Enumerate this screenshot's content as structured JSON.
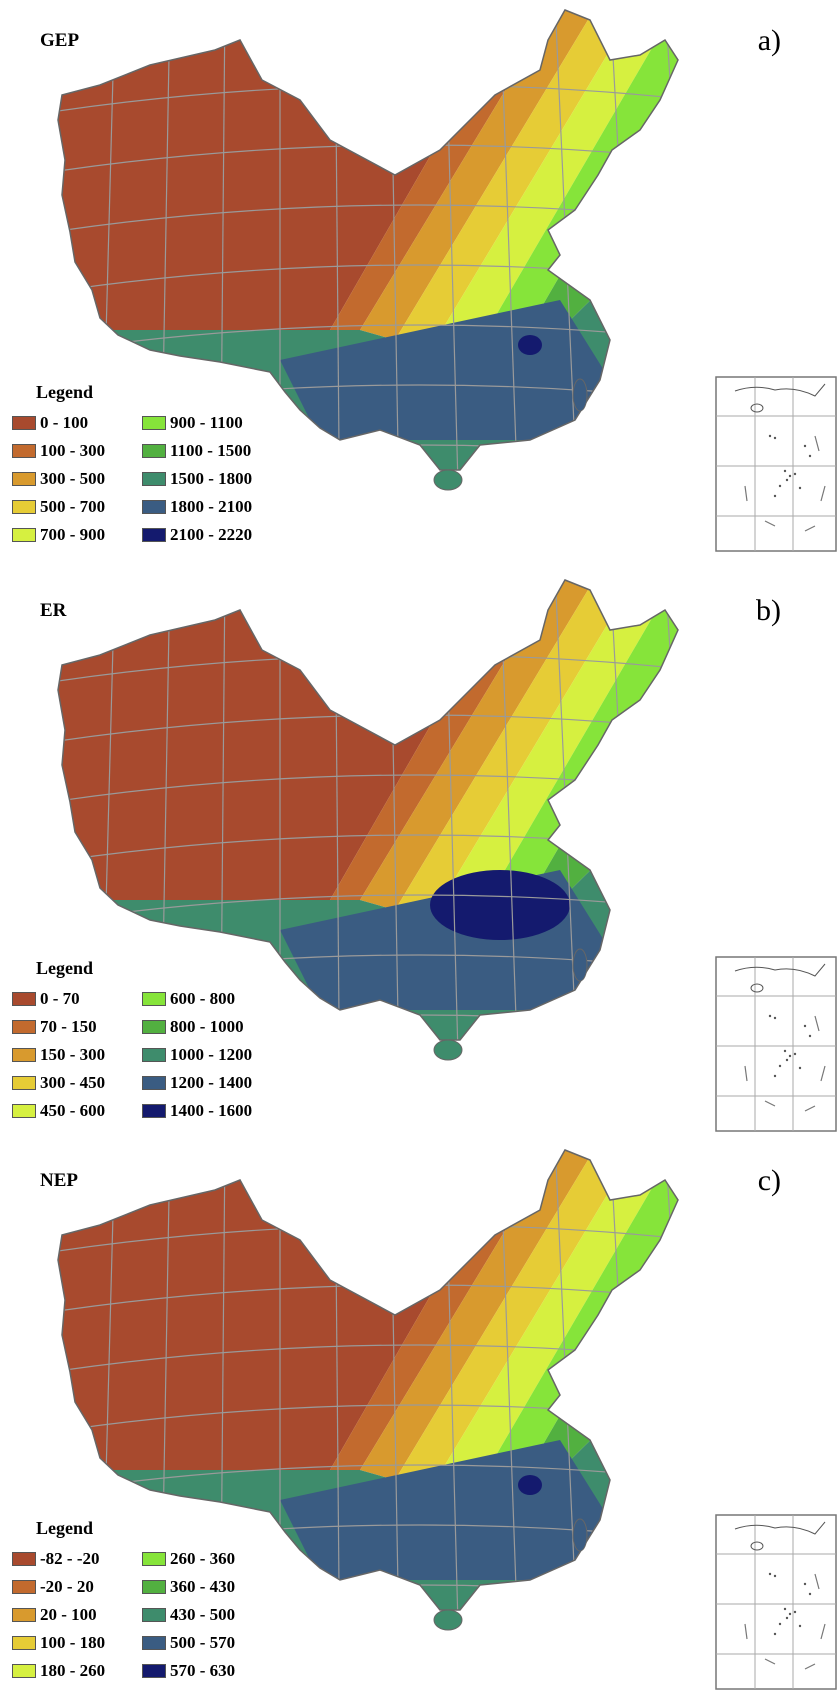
{
  "panels": [
    {
      "title": "GEP",
      "label": "a)",
      "legend_title": "Legend",
      "legend": [
        {
          "range": "0 - 100",
          "color": "#a84a2e"
        },
        {
          "range": "100 - 300",
          "color": "#c26a2e"
        },
        {
          "range": "300 - 500",
          "color": "#d89a2e"
        },
        {
          "range": "500 - 700",
          "color": "#e6cc36"
        },
        {
          "range": "700 - 900",
          "color": "#d6f040"
        },
        {
          "range": "900 - 1100",
          "color": "#86e43a"
        },
        {
          "range": "1100 - 1500",
          "color": "#52b040"
        },
        {
          "range": "1500 - 1800",
          "color": "#3e8c6c"
        },
        {
          "range": "1800 - 2100",
          "color": "#3a5c82"
        },
        {
          "range": "2100 - 2220",
          "color": "#141a6e"
        }
      ]
    },
    {
      "title": "ER",
      "label": "b)",
      "legend_title": "Legend",
      "legend": [
        {
          "range": "0 - 70",
          "color": "#a84a2e"
        },
        {
          "range": "70 - 150",
          "color": "#c26a2e"
        },
        {
          "range": "150 - 300",
          "color": "#d89a2e"
        },
        {
          "range": "300 - 450",
          "color": "#e6cc36"
        },
        {
          "range": "450 - 600",
          "color": "#d6f040"
        },
        {
          "range": "600 - 800",
          "color": "#86e43a"
        },
        {
          "range": "800 - 1000",
          "color": "#52b040"
        },
        {
          "range": "1000 - 1200",
          "color": "#3e8c6c"
        },
        {
          "range": "1200 - 1400",
          "color": "#3a5c82"
        },
        {
          "range": "1400 - 1600",
          "color": "#141a6e"
        }
      ]
    },
    {
      "title": "NEP",
      "label": "c)",
      "legend_title": "Legend",
      "legend": [
        {
          "range": "-82 - -20",
          "color": "#a84a2e"
        },
        {
          "range": "-20 - 20",
          "color": "#c26a2e"
        },
        {
          "range": "20 - 100",
          "color": "#d89a2e"
        },
        {
          "range": "100 - 180",
          "color": "#e6cc36"
        },
        {
          "range": "180 - 260",
          "color": "#d6f040"
        },
        {
          "range": "260 - 360",
          "color": "#86e43a"
        },
        {
          "range": "360 - 430",
          "color": "#52b040"
        },
        {
          "range": "430 - 500",
          "color": "#3e8c6c"
        },
        {
          "range": "500 - 570",
          "color": "#3a5c82"
        },
        {
          "range": "570 - 630",
          "color": "#141a6e"
        }
      ]
    }
  ]
}
